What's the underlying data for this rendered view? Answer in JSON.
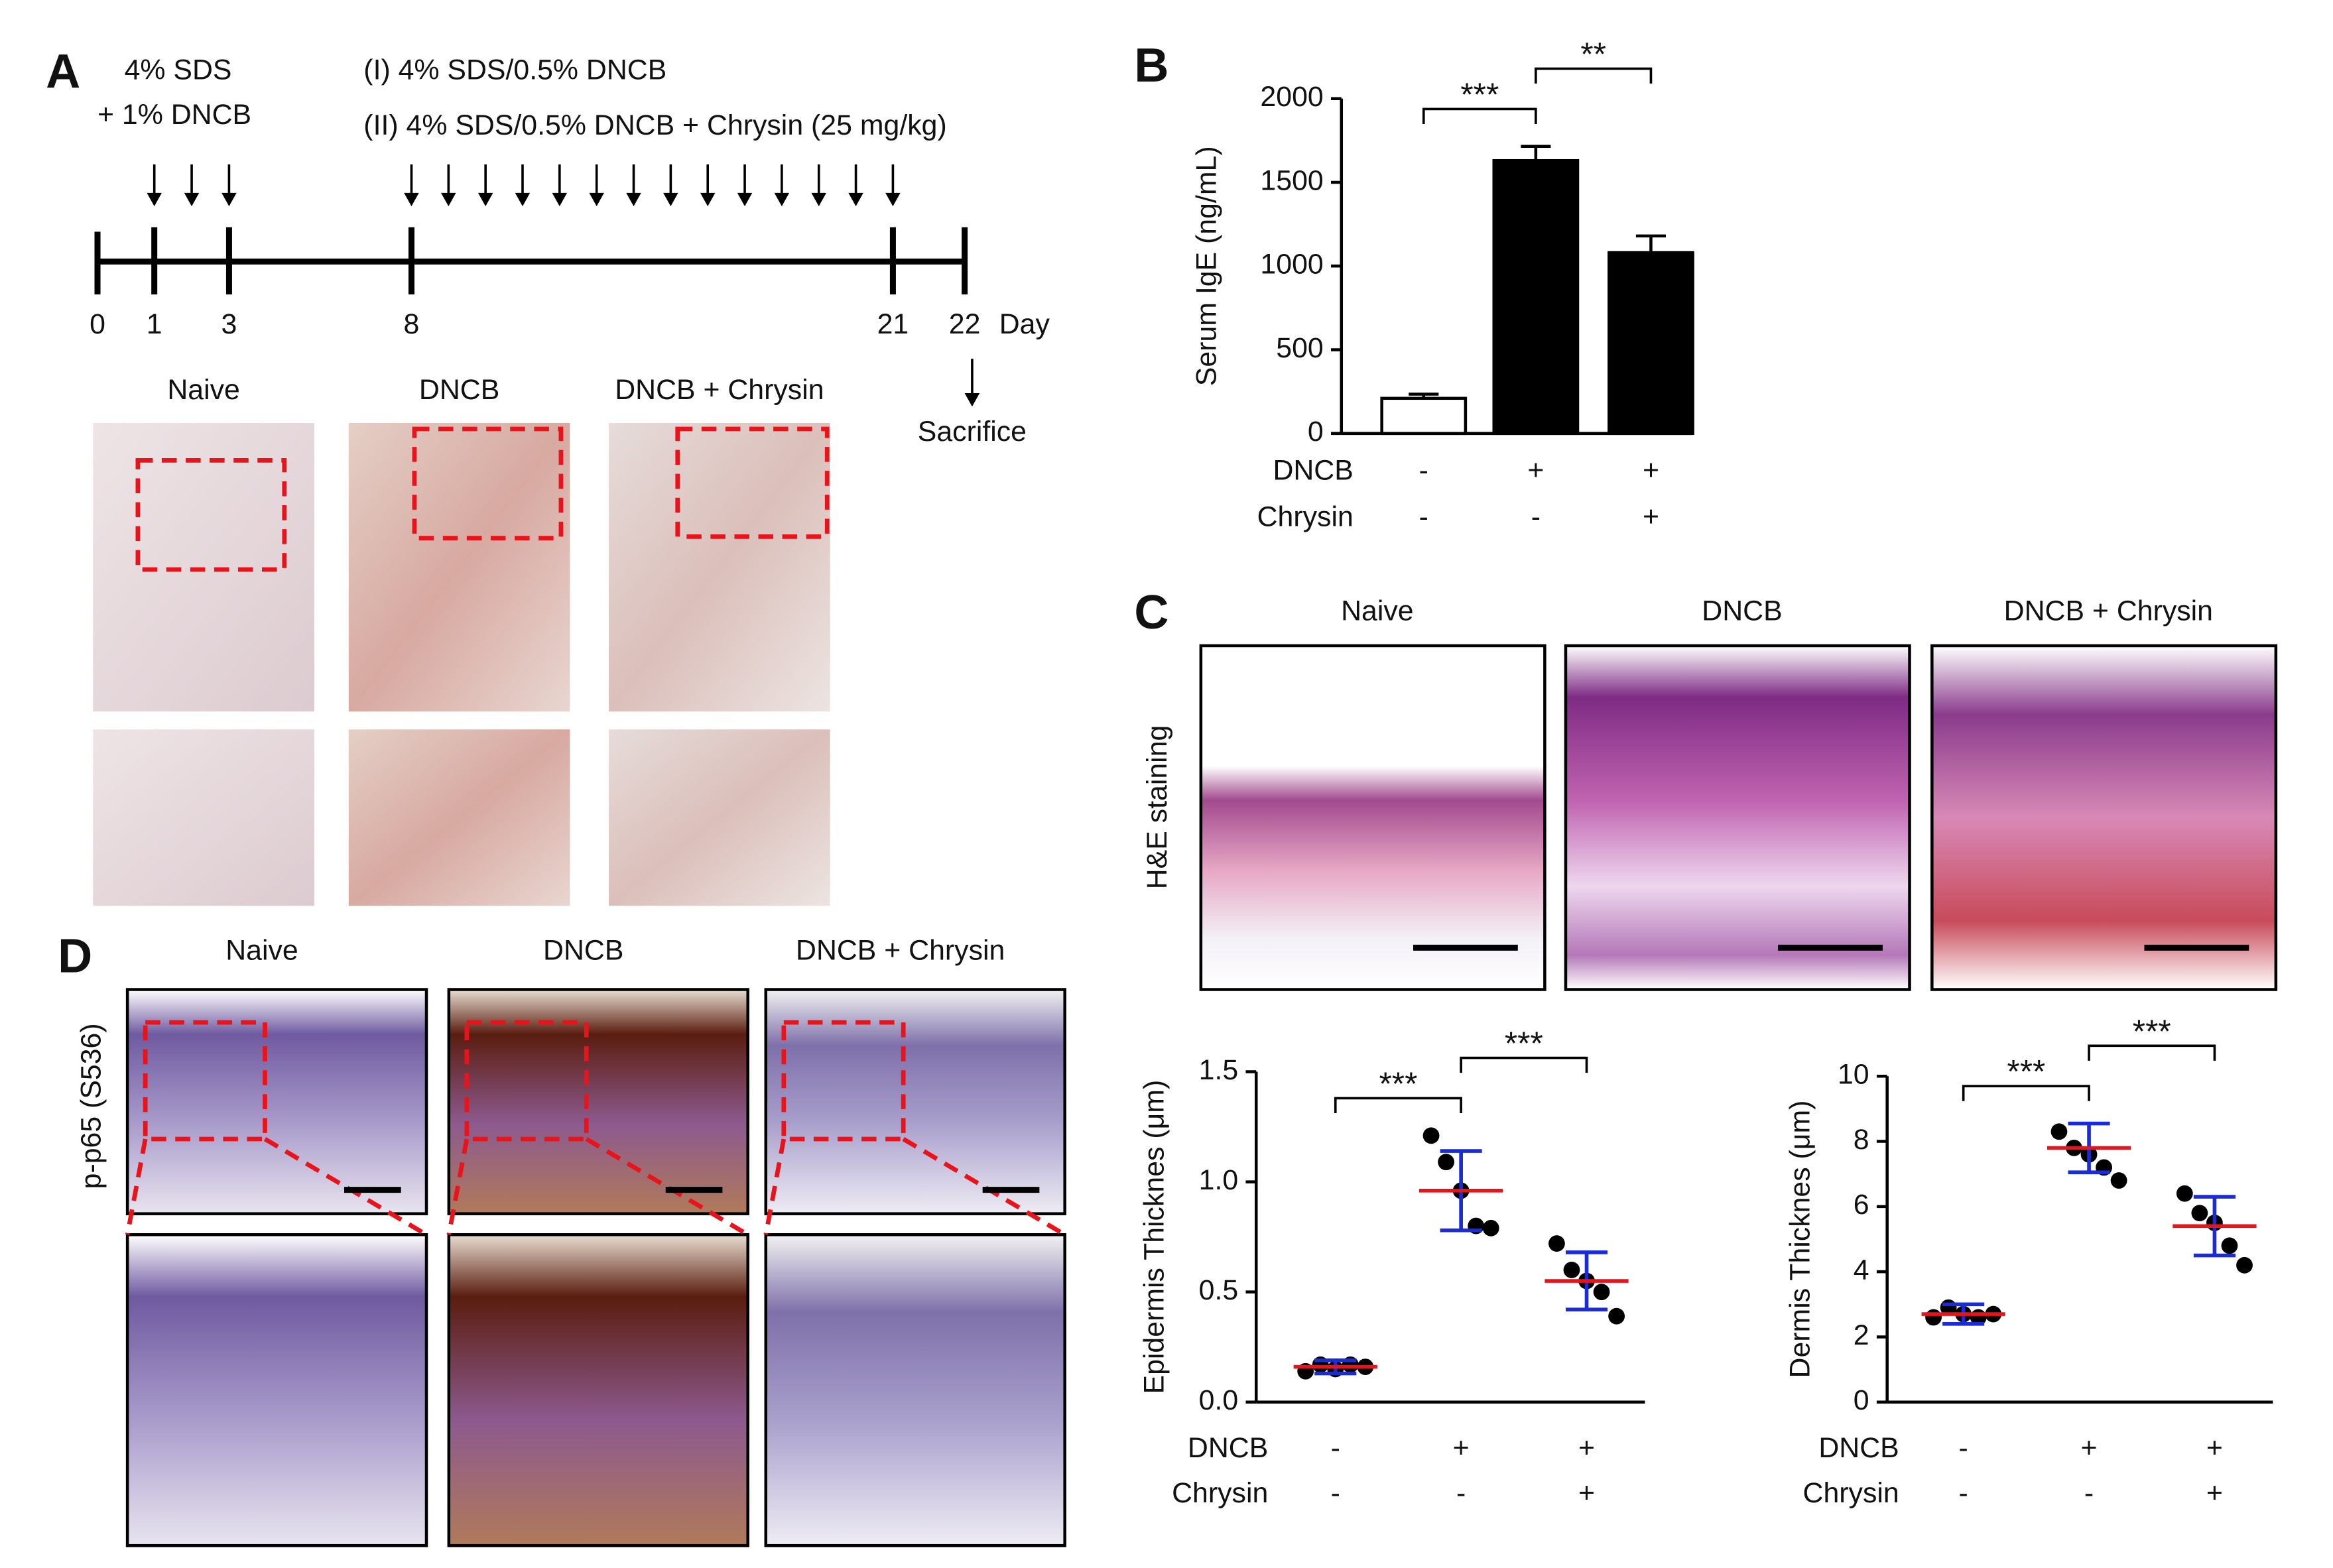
{
  "panels": {
    "a": "A",
    "b": "B",
    "c": "C",
    "d": "D"
  },
  "timeline": {
    "induction": [
      "4% SDS",
      "+ 1% DNCB"
    ],
    "treatment": [
      "(I) 4% SDS/0.5% DNCB",
      "(II) 4% SDS/0.5% DNCB + Chrysin (25 mg/kg)"
    ],
    "days": [
      "0",
      "1",
      "3",
      "8",
      "21",
      "22"
    ],
    "unit": "Day",
    "end": "Sacrifice"
  },
  "photos": {
    "groups": [
      "Naive",
      "DNCB",
      "DNCB + Chrysin"
    ]
  },
  "histology": {
    "groups": [
      "Naive",
      "DNCB",
      "DNCB + Chrysin"
    ],
    "row_label": "H&E staining"
  },
  "ihc": {
    "groups": [
      "Naive",
      "DNCB",
      "DNCB + Chrysin"
    ],
    "row_label": "p-p65 (S536)"
  },
  "chart_data": [
    {
      "type": "bar",
      "ylabel": "Serum IgE (ng/mL)",
      "treatments": [
        {
          "label": "DNCB",
          "signs": [
            "-",
            "+",
            "+"
          ]
        },
        {
          "label": "Chrysin",
          "signs": [
            "-",
            "-",
            "+"
          ]
        }
      ],
      "values": [
        210,
        1630,
        1080
      ],
      "errors": [
        25,
        85,
        100
      ],
      "colors": [
        "#ffffff",
        "#000000",
        "#000000"
      ],
      "ylim": [
        0,
        2000
      ],
      "yticks": [
        0,
        500,
        1000,
        1500,
        2000
      ],
      "significance": [
        "***",
        "**"
      ]
    },
    {
      "type": "dotplot",
      "ylabel": "Epidermis Thicknes (μm)",
      "treatments": [
        {
          "label": "DNCB",
          "signs": [
            "-",
            "+",
            "+"
          ]
        },
        {
          "label": "Chrysin",
          "signs": [
            "-",
            "-",
            "+"
          ]
        }
      ],
      "points": [
        [
          0.14,
          0.17,
          0.15,
          0.17,
          0.16
        ],
        [
          1.21,
          1.09,
          0.96,
          0.8,
          0.79
        ],
        [
          0.72,
          0.6,
          0.55,
          0.5,
          0.39
        ]
      ],
      "values": [
        0.16,
        0.96,
        0.55
      ],
      "errors": [
        0.03,
        0.18,
        0.13
      ],
      "point_color": "#000000",
      "mean_color": "#e8141c",
      "sd_color": "#1b2bd6",
      "ylim": [
        0,
        1.5
      ],
      "yticks": [
        {
          "value": 0,
          "label": "0.0"
        },
        0.5,
        {
          "value": 1,
          "label": "1.0"
        },
        1.5
      ],
      "significance": [
        "***",
        "***"
      ]
    },
    {
      "type": "dotplot",
      "ylabel": "Dermis Thicknes (μm)",
      "treatments": [
        {
          "label": "DNCB",
          "signs": [
            "-",
            "+",
            "+"
          ]
        },
        {
          "label": "Chrysin",
          "signs": [
            "-",
            "-",
            "+"
          ]
        }
      ],
      "points": [
        [
          2.6,
          2.9,
          2.7,
          2.6,
          2.7
        ],
        [
          8.3,
          7.8,
          7.6,
          7.2,
          6.8
        ],
        [
          6.4,
          5.8,
          5.5,
          4.8,
          4.2
        ]
      ],
      "values": [
        2.7,
        7.8,
        5.4
      ],
      "errors": [
        0.3,
        0.75,
        0.9
      ],
      "point_color": "#000000",
      "mean_color": "#e8141c",
      "sd_color": "#1b2bd6",
      "ylim": [
        0,
        10
      ],
      "yticks": [
        0,
        2,
        4,
        6,
        8,
        10
      ],
      "significance": [
        "***",
        "***"
      ]
    }
  ]
}
